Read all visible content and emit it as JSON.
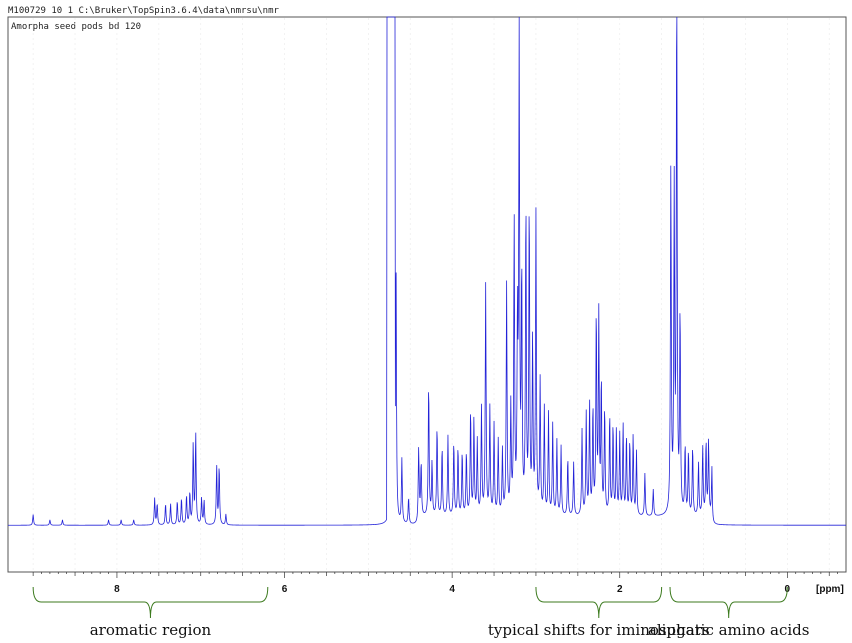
{
  "header": {
    "info_line": "M100729  10  1  C:\\Bruker\\TopSpin3.6.4\\data\\nmrsu\\nmr",
    "title": "Amorpha seed pods bd 120"
  },
  "colors": {
    "spectrum": "#2323d8",
    "brace": "#3c7a1e",
    "frame": "#555555",
    "grid": "#ececec"
  },
  "chart_data": {
    "type": "line",
    "title": "Amorpha seed pods bd 120",
    "xlabel": "[ppm]",
    "ylabel": "",
    "x_reversed": true,
    "xlim": [
      9.3,
      -0.7
    ],
    "ylim": [
      0,
      1
    ],
    "ytick_values": [],
    "xticks": [
      8,
      6,
      4,
      2,
      0
    ],
    "xtick_labels": [
      "8",
      "6",
      "4",
      "2",
      "0"
    ],
    "grid": "vertical dotted",
    "baseline": 0.05,
    "series": [
      {
        "peaks": [
          {
            "x": 9.0,
            "h": 0.02
          },
          {
            "x": 8.8,
            "h": 0.01
          },
          {
            "x": 8.65,
            "h": 0.01
          },
          {
            "x": 8.1,
            "h": 0.01
          },
          {
            "x": 7.95,
            "h": 0.01
          },
          {
            "x": 7.8,
            "h": 0.01
          },
          {
            "x": 7.55,
            "h": 0.05
          },
          {
            "x": 7.52,
            "h": 0.04
          },
          {
            "x": 7.42,
            "h": 0.04
          },
          {
            "x": 7.36,
            "h": 0.04
          },
          {
            "x": 7.28,
            "h": 0.045
          },
          {
            "x": 7.23,
            "h": 0.05
          },
          {
            "x": 7.17,
            "h": 0.055
          },
          {
            "x": 7.13,
            "h": 0.06
          },
          {
            "x": 7.09,
            "h": 0.15
          },
          {
            "x": 7.06,
            "h": 0.17
          },
          {
            "x": 6.99,
            "h": 0.05
          },
          {
            "x": 6.96,
            "h": 0.045
          },
          {
            "x": 6.81,
            "h": 0.11
          },
          {
            "x": 6.78,
            "h": 0.11
          },
          {
            "x": 6.7,
            "h": 0.02
          },
          {
            "x": 4.72,
            "h": 0.98
          },
          {
            "x": 4.67,
            "h": 0.5
          },
          {
            "x": 4.6,
            "h": 0.12
          },
          {
            "x": 4.52,
            "h": 0.05
          },
          {
            "x": 4.4,
            "h": 0.14
          },
          {
            "x": 4.37,
            "h": 0.1
          },
          {
            "x": 4.28,
            "h": 0.25
          },
          {
            "x": 4.24,
            "h": 0.1
          },
          {
            "x": 4.18,
            "h": 0.17
          },
          {
            "x": 4.12,
            "h": 0.13
          },
          {
            "x": 4.05,
            "h": 0.15
          },
          {
            "x": 3.98,
            "h": 0.14
          },
          {
            "x": 3.93,
            "h": 0.13
          },
          {
            "x": 3.88,
            "h": 0.12
          },
          {
            "x": 3.83,
            "h": 0.12
          },
          {
            "x": 3.78,
            "h": 0.2
          },
          {
            "x": 3.74,
            "h": 0.18
          },
          {
            "x": 3.7,
            "h": 0.14
          },
          {
            "x": 3.65,
            "h": 0.2
          },
          {
            "x": 3.6,
            "h": 0.43
          },
          {
            "x": 3.55,
            "h": 0.2
          },
          {
            "x": 3.5,
            "h": 0.17
          },
          {
            "x": 3.45,
            "h": 0.14
          },
          {
            "x": 3.4,
            "h": 0.12
          },
          {
            "x": 3.35,
            "h": 0.43
          },
          {
            "x": 3.3,
            "h": 0.2
          },
          {
            "x": 3.26,
            "h": 0.55
          },
          {
            "x": 3.22,
            "h": 0.35
          },
          {
            "x": 3.2,
            "h": 0.88
          },
          {
            "x": 3.17,
            "h": 0.45
          },
          {
            "x": 3.12,
            "h": 0.58
          },
          {
            "x": 3.08,
            "h": 0.58
          },
          {
            "x": 3.04,
            "h": 0.32
          },
          {
            "x": 3.0,
            "h": 0.56
          },
          {
            "x": 2.95,
            "h": 0.25
          },
          {
            "x": 2.9,
            "h": 0.2
          },
          {
            "x": 2.85,
            "h": 0.19
          },
          {
            "x": 2.8,
            "h": 0.17
          },
          {
            "x": 2.75,
            "h": 0.14
          },
          {
            "x": 2.7,
            "h": 0.13
          },
          {
            "x": 2.62,
            "h": 0.11
          },
          {
            "x": 2.55,
            "h": 0.1
          },
          {
            "x": 2.45,
            "h": 0.16
          },
          {
            "x": 2.4,
            "h": 0.19
          },
          {
            "x": 2.36,
            "h": 0.21
          },
          {
            "x": 2.32,
            "h": 0.2
          },
          {
            "x": 2.28,
            "h": 0.38
          },
          {
            "x": 2.25,
            "h": 0.37
          },
          {
            "x": 2.22,
            "h": 0.25
          },
          {
            "x": 2.18,
            "h": 0.2
          },
          {
            "x": 2.12,
            "h": 0.19
          },
          {
            "x": 2.08,
            "h": 0.17
          },
          {
            "x": 2.04,
            "h": 0.16
          },
          {
            "x": 2.0,
            "h": 0.15
          },
          {
            "x": 1.96,
            "h": 0.17
          },
          {
            "x": 1.92,
            "h": 0.15
          },
          {
            "x": 1.88,
            "h": 0.14
          },
          {
            "x": 1.84,
            "h": 0.15
          },
          {
            "x": 1.8,
            "h": 0.12
          },
          {
            "x": 1.7,
            "h": 0.08
          },
          {
            "x": 1.6,
            "h": 0.05
          },
          {
            "x": 1.39,
            "h": 0.65
          },
          {
            "x": 1.35,
            "h": 0.6
          },
          {
            "x": 1.32,
            "h": 1.0
          },
          {
            "x": 1.28,
            "h": 0.38
          },
          {
            "x": 1.22,
            "h": 0.13
          },
          {
            "x": 1.18,
            "h": 0.12
          },
          {
            "x": 1.13,
            "h": 0.13
          },
          {
            "x": 1.06,
            "h": 0.1
          },
          {
            "x": 1.01,
            "h": 0.13
          },
          {
            "x": 0.97,
            "h": 0.14
          },
          {
            "x": 0.94,
            "h": 0.14
          },
          {
            "x": 0.9,
            "h": 0.09
          }
        ]
      }
    ],
    "annotations": [
      {
        "text": "aromatic region",
        "x_range": [
          9.0,
          6.2
        ]
      },
      {
        "text": "typical shifts for iminosugars",
        "x_range": [
          3.0,
          1.5
        ]
      },
      {
        "text": "aliphatic amino acids",
        "x_range": [
          1.4,
          0.0
        ]
      }
    ]
  }
}
